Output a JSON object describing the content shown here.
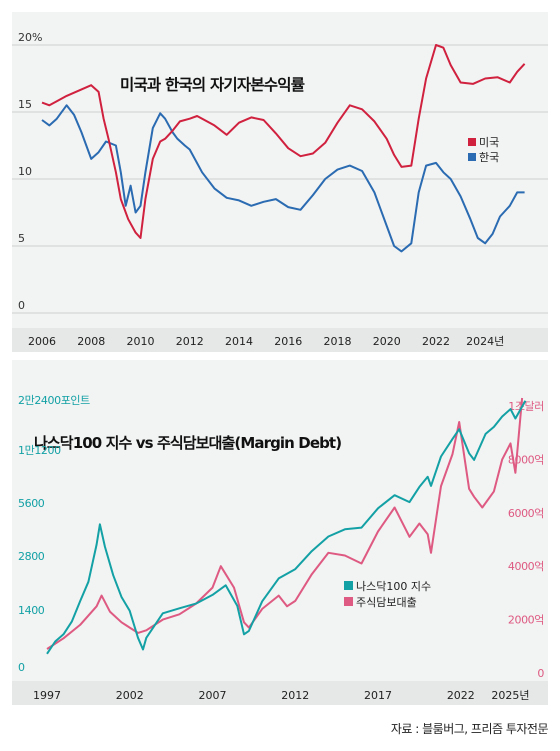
{
  "source_note": "자료 : 블룸버그, 프리즘 투자전문",
  "chart_data": [
    {
      "type": "line",
      "title": "미국과 한국의 자기자본수익률",
      "ylim": [
        0,
        20
      ],
      "yticks": [
        "20%",
        "15",
        "10",
        "5",
        "0"
      ],
      "ytick_values": [
        20,
        15,
        10,
        5,
        0
      ],
      "xlim": [
        2006,
        2025.9
      ],
      "xticks": [
        "2006",
        "2008",
        "2010",
        "2012",
        "2014",
        "2016",
        "2018",
        "2020",
        "2022",
        "2024년"
      ],
      "xtick_values": [
        2006,
        2008,
        2010,
        2012,
        2014,
        2016,
        2018,
        2020,
        2022,
        2024
      ],
      "grid": "horizontal",
      "legend_position": "right",
      "series": [
        {
          "name": "미국",
          "color": "#d0213f",
          "x": [
            2006.0,
            2006.3,
            2006.6,
            2007.0,
            2007.5,
            2008.0,
            2008.3,
            2008.5,
            2008.7,
            2009.0,
            2009.2,
            2009.5,
            2009.8,
            2010.0,
            2010.2,
            2010.5,
            2010.8,
            2011.0,
            2011.3,
            2011.6,
            2012.0,
            2012.3,
            2012.6,
            2013.0,
            2013.5,
            2014.0,
            2014.5,
            2015.0,
            2015.5,
            2016.0,
            2016.5,
            2017.0,
            2017.5,
            2018.0,
            2018.5,
            2019.0,
            2019.5,
            2020.0,
            2020.3,
            2020.6,
            2021.0,
            2021.3,
            2021.6,
            2022.0,
            2022.3,
            2022.6,
            2023.0,
            2023.5,
            2024.0,
            2024.5,
            2025.0,
            2025.3,
            2025.6
          ],
          "values": [
            15.7,
            15.5,
            15.8,
            16.2,
            16.6,
            17.0,
            16.5,
            14.5,
            13.0,
            10.5,
            8.5,
            7.0,
            6.0,
            5.6,
            8.5,
            11.5,
            12.8,
            13.0,
            13.6,
            14.3,
            14.5,
            14.7,
            14.4,
            14.0,
            13.3,
            14.2,
            14.6,
            14.4,
            13.4,
            12.3,
            11.7,
            11.9,
            12.7,
            14.2,
            15.5,
            15.2,
            14.3,
            13.0,
            11.8,
            10.9,
            11.0,
            14.5,
            17.5,
            20.0,
            19.8,
            18.5,
            17.2,
            17.1,
            17.5,
            17.6,
            17.2,
            18.0,
            18.6
          ]
        },
        {
          "name": "한국",
          "color": "#2a6bb1",
          "x": [
            2006.0,
            2006.3,
            2006.6,
            2007.0,
            2007.3,
            2007.6,
            2008.0,
            2008.3,
            2008.6,
            2009.0,
            2009.2,
            2009.4,
            2009.6,
            2009.8,
            2010.0,
            2010.2,
            2010.5,
            2010.8,
            2011.0,
            2011.3,
            2011.5,
            2011.8,
            2012.0,
            2012.5,
            2013.0,
            2013.5,
            2014.0,
            2014.5,
            2015.0,
            2015.5,
            2016.0,
            2016.5,
            2017.0,
            2017.5,
            2018.0,
            2018.5,
            2019.0,
            2019.5,
            2020.0,
            2020.3,
            2020.6,
            2021.0,
            2021.3,
            2021.6,
            2022.0,
            2022.3,
            2022.6,
            2023.0,
            2023.4,
            2023.7,
            2024.0,
            2024.3,
            2024.6,
            2025.0,
            2025.3,
            2025.6
          ],
          "values": [
            14.4,
            14.0,
            14.5,
            15.5,
            14.8,
            13.5,
            11.5,
            12.0,
            12.8,
            12.5,
            10.5,
            8.0,
            9.5,
            7.5,
            8.0,
            10.5,
            13.8,
            14.9,
            14.5,
            13.5,
            13.0,
            12.5,
            12.2,
            10.5,
            9.3,
            8.6,
            8.4,
            8.0,
            8.3,
            8.5,
            7.9,
            7.7,
            8.8,
            10.0,
            10.7,
            11.0,
            10.6,
            9.0,
            6.5,
            5.0,
            4.6,
            5.2,
            9.0,
            11.0,
            11.2,
            10.5,
            10.0,
            8.7,
            7.0,
            5.6,
            5.2,
            5.9,
            7.2,
            8.0,
            9.0,
            9.0
          ]
        }
      ]
    },
    {
      "type": "line",
      "title": "나스닥100 지수 vs 주식담보대출(Margin Debt)",
      "left_yticks": [
        "2만2400포인트",
        "1만1200",
        "5600",
        "2800",
        "1400",
        "0"
      ],
      "left_ytick_values": [
        22400,
        11200,
        5600,
        2800,
        1400,
        0
      ],
      "right_yticks": [
        "1조달러",
        "8000억",
        "6000억",
        "4000억",
        "2000억",
        "0"
      ],
      "right_ytick_values": [
        10000,
        8000,
        6000,
        4000,
        2000,
        0
      ],
      "right_ylim": [
        0,
        10000
      ],
      "xlim": [
        1996.7,
        2026.3
      ],
      "xticks": [
        "1997",
        "2002",
        "2007",
        "2012",
        "2017",
        "2022",
        "2025년"
      ],
      "xtick_values": [
        1997,
        2002,
        2007,
        2012,
        2017,
        2022,
        2025
      ],
      "grid": "none",
      "legend_position": "center-right",
      "series": [
        {
          "name": "나스닥100 지수",
          "color": "#13a1a5",
          "axis": "left",
          "x": [
            1997.0,
            1997.5,
            1998.0,
            1998.5,
            1999.0,
            1999.5,
            2000.0,
            2000.2,
            2000.5,
            2001.0,
            2001.5,
            2002.0,
            2002.5,
            2002.8,
            2003.0,
            2004.0,
            2005.0,
            2006.0,
            2007.0,
            2007.8,
            2008.5,
            2008.9,
            2009.2,
            2010.0,
            2011.0,
            2012.0,
            2013.0,
            2014.0,
            2015.0,
            2016.0,
            2017.0,
            2018.0,
            2018.9,
            2019.5,
            2020.0,
            2020.2,
            2020.8,
            2021.5,
            2021.9,
            2022.5,
            2022.8,
            2023.5,
            2024.0,
            2024.5,
            2025.0,
            2025.3,
            2025.9
          ],
          "values": [
            850,
            1000,
            1100,
            1300,
            1700,
            2200,
            3600,
            4700,
            3500,
            2400,
            1800,
            1500,
            1050,
            900,
            1050,
            1450,
            1550,
            1650,
            1850,
            2100,
            1600,
            1100,
            1150,
            1700,
            2300,
            2600,
            3300,
            4000,
            4400,
            4500,
            5800,
            6900,
            6300,
            7700,
            8800,
            7800,
            11500,
            14500,
            16500,
            12000,
            11000,
            15500,
            17000,
            19500,
            21500,
            19000,
            24000
          ]
        },
        {
          "name": "주식담보대출",
          "color": "#de5a82",
          "axis": "right",
          "x": [
            1997.0,
            1998.0,
            1999.0,
            2000.0,
            2000.3,
            2000.8,
            2001.5,
            2002.0,
            2002.5,
            2003.0,
            2004.0,
            2005.0,
            2006.0,
            2007.0,
            2007.5,
            2008.3,
            2008.9,
            2009.2,
            2010.0,
            2011.0,
            2011.5,
            2012.0,
            2013.0,
            2014.0,
            2015.0,
            2016.0,
            2017.0,
            2018.0,
            2018.9,
            2019.5,
            2020.0,
            2020.2,
            2020.8,
            2021.5,
            2021.9,
            2022.5,
            2022.8,
            2023.3,
            2024.0,
            2024.5,
            2025.0,
            2025.3,
            2025.7
          ],
          "values": [
            900,
            1300,
            1800,
            2500,
            2900,
            2300,
            1900,
            1700,
            1500,
            1600,
            2000,
            2200,
            2600,
            3200,
            4000,
            3200,
            1900,
            1700,
            2400,
            2900,
            2500,
            2700,
            3700,
            4500,
            4400,
            4100,
            5300,
            6200,
            5100,
            5600,
            5200,
            4500,
            7000,
            8200,
            9400,
            6900,
            6600,
            6200,
            6800,
            8000,
            8600,
            7500,
            10300
          ]
        }
      ]
    }
  ]
}
